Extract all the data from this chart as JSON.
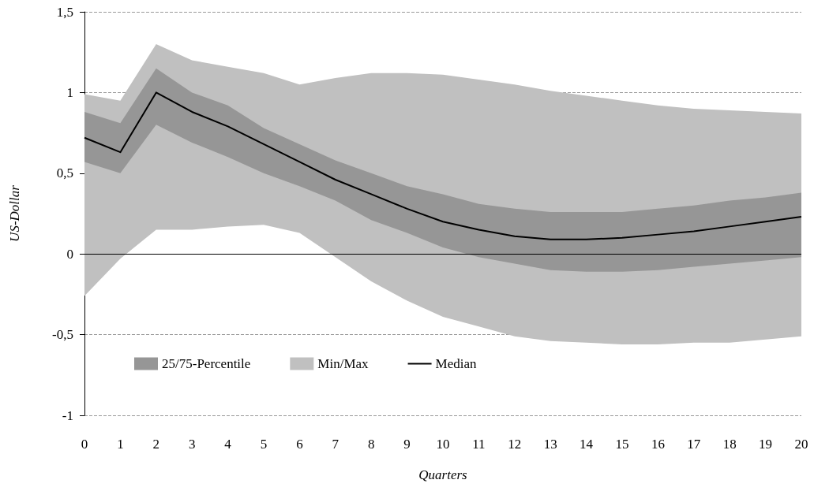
{
  "chart_data": {
    "type": "line",
    "xlabel": "Quarters",
    "ylabel": "US-Dollar",
    "x": [
      0,
      1,
      2,
      3,
      4,
      5,
      6,
      7,
      8,
      9,
      10,
      11,
      12,
      13,
      14,
      15,
      16,
      17,
      18,
      19,
      20
    ],
    "series": [
      {
        "name": "25/75-Percentile",
        "color": "#969696",
        "values": [
          null,
          null,
          null,
          null,
          null,
          null,
          null,
          null,
          null,
          null,
          null,
          null,
          null,
          null,
          null,
          null,
          null,
          null,
          null,
          null,
          null
        ],
        "lower": [
          0.57,
          0.5,
          0.8,
          0.69,
          0.6,
          0.5,
          0.42,
          0.33,
          0.21,
          0.13,
          0.04,
          -0.02,
          -0.06,
          -0.1,
          -0.11,
          -0.11,
          -0.1,
          -0.08,
          -0.06,
          -0.04,
          -0.02
        ],
        "upper": [
          0.88,
          0.81,
          1.15,
          1.0,
          0.92,
          0.78,
          0.68,
          0.58,
          0.5,
          0.42,
          0.37,
          0.31,
          0.28,
          0.26,
          0.26,
          0.26,
          0.28,
          0.3,
          0.33,
          0.35,
          0.38
        ]
      },
      {
        "name": "Min/Max",
        "color": "#c0c0c0",
        "values": [
          null,
          null,
          null,
          null,
          null,
          null,
          null,
          null,
          null,
          null,
          null,
          null,
          null,
          null,
          null,
          null,
          null,
          null,
          null,
          null,
          null
        ],
        "lower": [
          -0.26,
          -0.03,
          0.15,
          0.15,
          0.17,
          0.18,
          0.13,
          -0.02,
          -0.17,
          -0.29,
          -0.39,
          -0.45,
          -0.51,
          -0.54,
          -0.55,
          -0.56,
          -0.56,
          -0.55,
          -0.55,
          -0.53,
          -0.51
        ],
        "upper": [
          0.99,
          0.95,
          1.3,
          1.2,
          1.16,
          1.12,
          1.05,
          1.09,
          1.12,
          1.12,
          1.11,
          1.08,
          1.05,
          1.01,
          0.98,
          0.95,
          0.92,
          0.9,
          0.89,
          0.88,
          0.87
        ]
      },
      {
        "name": "Median",
        "color": "#000000",
        "values": [
          0.72,
          0.63,
          1.0,
          0.88,
          0.79,
          0.68,
          0.57,
          0.46,
          0.37,
          0.28,
          0.2,
          0.15,
          0.11,
          0.09,
          0.09,
          0.1,
          0.12,
          0.14,
          0.17,
          0.2,
          0.23
        ]
      }
    ],
    "xlim": [
      0,
      20
    ],
    "xticks": [
      0,
      1,
      2,
      3,
      4,
      5,
      6,
      7,
      8,
      9,
      10,
      11,
      12,
      13,
      14,
      15,
      16,
      17,
      18,
      19,
      20
    ],
    "ylim": [
      -1,
      1.5
    ],
    "yticks": [
      {
        "value": -1,
        "label": "-1"
      },
      {
        "value": -0.5,
        "label": "-0,5"
      },
      0,
      {
        "value": 0.5,
        "label": "0,5"
      },
      1,
      {
        "value": 1.5,
        "label": "1,5"
      }
    ],
    "ref_lines": [
      {
        "axis": "y",
        "value": 0,
        "color": "#000000",
        "line_style": "solid"
      }
    ],
    "grid": "y",
    "legend": "bottom left",
    "marker": "none",
    "line_style": "solid"
  }
}
